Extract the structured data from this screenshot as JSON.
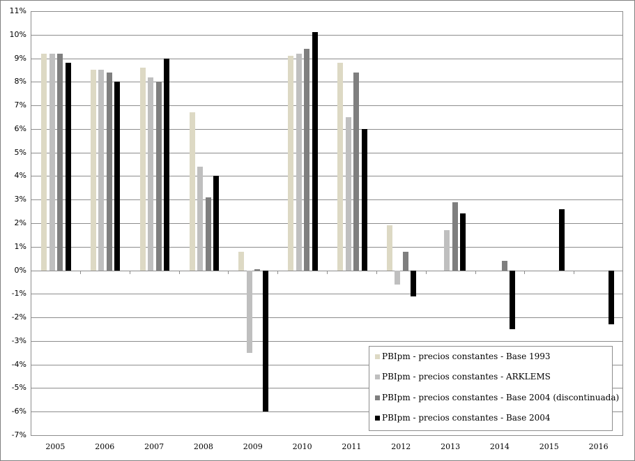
{
  "chart_data": {
    "type": "bar",
    "title": "",
    "xlabel": "",
    "ylabel": "",
    "ylim": [
      -0.07,
      0.11
    ],
    "yticks": [
      "11%",
      "10%",
      "9%",
      "8%",
      "7%",
      "6%",
      "5%",
      "4%",
      "3%",
      "2%",
      "1%",
      "0%",
      "-1%",
      "-2%",
      "-3%",
      "-4%",
      "-5%",
      "-6%",
      "-7%"
    ],
    "grid": true,
    "legend_position": "lower right (inside)",
    "categories": [
      "2005",
      "2006",
      "2007",
      "2008",
      "2009",
      "2010",
      "2011",
      "2012",
      "2013",
      "2014",
      "2015",
      "2016"
    ],
    "series": [
      {
        "name": "PBIpm - precios constantes - Base 1993",
        "color": "#ddd9c4",
        "values": [
          9.2,
          8.5,
          8.6,
          6.7,
          0.8,
          9.1,
          8.8,
          1.9,
          null,
          null,
          null,
          null
        ]
      },
      {
        "name": "PBIpm - precios constantes - ARKLEMS",
        "color": "#bfbfbf",
        "values": [
          9.2,
          8.5,
          8.2,
          4.4,
          -3.5,
          9.2,
          6.5,
          -0.6,
          1.7,
          null,
          null,
          null
        ]
      },
      {
        "name": "PBIpm - precios constantes - Base 2004 (discontinuada)",
        "color": "#7f7f7f",
        "values": [
          9.2,
          8.4,
          8.0,
          3.1,
          0.05,
          9.4,
          8.4,
          0.8,
          2.9,
          0.4,
          null,
          null
        ]
      },
      {
        "name": "PBIpm - precios constantes - Base 2004",
        "color": "#000000",
        "values": [
          8.8,
          8.0,
          9.0,
          4.0,
          -6.0,
          10.1,
          6.0,
          -1.1,
          2.4,
          -2.5,
          2.6,
          -2.3
        ]
      }
    ],
    "units": "percent"
  },
  "legend": {
    "items": [
      {
        "label": "PBIpm - precios constantes - Base 1993"
      },
      {
        "label": "PBIpm - precios constantes - ARKLEMS"
      },
      {
        "label": "PBIpm - precios constantes - Base 2004 (discontinuada)"
      },
      {
        "label": "PBIpm - precios constantes - Base 2004"
      }
    ]
  }
}
